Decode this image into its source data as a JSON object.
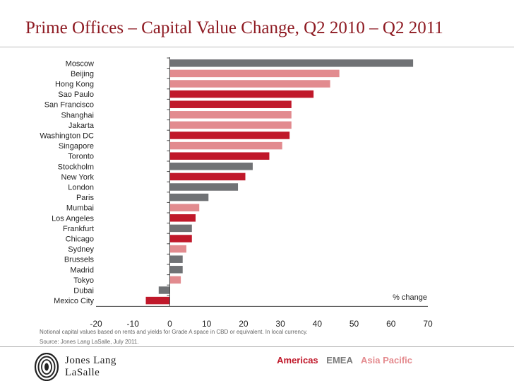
{
  "title": "Prime Offices – Capital Value Change, Q2 2010 – Q2 2011",
  "footnotes": [
    "Notional capital values based on rents and yields  for Grade A space in CBD or equivalent.  In local currency.",
    "Source: Jones Lang LaSalle, July 2011."
  ],
  "logo": {
    "line1": "Jones Lang",
    "line2": "LaSalle",
    "icon": "jll-logo-icon"
  },
  "regions": [
    {
      "label": "Americas",
      "color": "#c0182a"
    },
    {
      "label": "EMEA",
      "color": "#7a7a7a"
    },
    {
      "label": "Asia Pacific",
      "color": "#e48a8e"
    }
  ],
  "colors": {
    "americas": "#c0182a",
    "emea": "#707275",
    "asia_pacific": "#e28b8f"
  },
  "chart_data": {
    "type": "bar",
    "orientation": "horizontal",
    "xlabel": "% change",
    "xlim": [
      -20,
      70
    ],
    "xticks": [
      -20,
      -10,
      0,
      10,
      20,
      30,
      40,
      50,
      60,
      70
    ],
    "grid": false,
    "bars": [
      {
        "label": "Moscow",
        "value": 66,
        "region": "emea"
      },
      {
        "label": "Beijing",
        "value": 46,
        "region": "asia_pacific"
      },
      {
        "label": "Hong Kong",
        "value": 43.5,
        "region": "asia_pacific"
      },
      {
        "label": "Sao Paulo",
        "value": 39,
        "region": "americas"
      },
      {
        "label": "San Francisco",
        "value": 33,
        "region": "americas"
      },
      {
        "label": "Shanghai",
        "value": 33,
        "region": "asia_pacific"
      },
      {
        "label": "Jakarta",
        "value": 33,
        "region": "asia_pacific"
      },
      {
        "label": "Washington DC",
        "value": 32.5,
        "region": "americas"
      },
      {
        "label": "Singapore",
        "value": 30.5,
        "region": "asia_pacific"
      },
      {
        "label": "Toronto",
        "value": 27,
        "region": "americas"
      },
      {
        "label": "Stockholm",
        "value": 22.5,
        "region": "emea"
      },
      {
        "label": "New York",
        "value": 20.5,
        "region": "americas"
      },
      {
        "label": "London",
        "value": 18.5,
        "region": "emea"
      },
      {
        "label": "Paris",
        "value": 10.5,
        "region": "emea"
      },
      {
        "label": "Mumbai",
        "value": 8,
        "region": "asia_pacific"
      },
      {
        "label": "Los Angeles",
        "value": 7,
        "region": "americas"
      },
      {
        "label": "Frankfurt",
        "value": 6,
        "region": "emea"
      },
      {
        "label": "Chicago",
        "value": 6,
        "region": "americas"
      },
      {
        "label": "Sydney",
        "value": 4.5,
        "region": "asia_pacific"
      },
      {
        "label": "Brussels",
        "value": 3.5,
        "region": "emea"
      },
      {
        "label": "Madrid",
        "value": 3.5,
        "region": "emea"
      },
      {
        "label": "Tokyo",
        "value": 3,
        "region": "asia_pacific"
      },
      {
        "label": "Dubai",
        "value": -3,
        "region": "emea"
      },
      {
        "label": "Mexico City",
        "value": -6.5,
        "region": "americas"
      }
    ]
  }
}
